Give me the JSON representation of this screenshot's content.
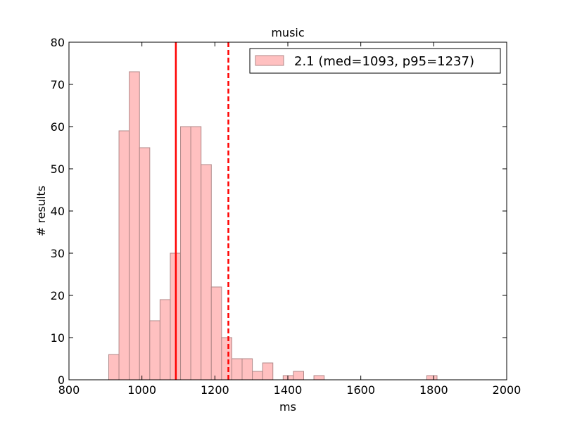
{
  "chart_data": {
    "type": "histogram",
    "title": "music",
    "xlabel": "ms",
    "ylabel": "# results",
    "bins": [
      909,
      937.125,
      965.25,
      993.375,
      1021.5,
      1049.625,
      1077.75,
      1105.875,
      1134,
      1162.125,
      1190.25,
      1218.375,
      1246.5,
      1274.625,
      1302.75,
      1330.875,
      1359,
      1387.125,
      1415.25,
      1443.375,
      1471.5,
      1499.625,
      1527.75,
      1555.875,
      1584,
      1612.125,
      1640.25,
      1668.375,
      1696.5,
      1724.625,
      1752.75,
      1780.875,
      1809
    ],
    "series": [
      {
        "name": "2.1 (med=1093, p95=1237)",
        "color": "#ffc0c0",
        "edgecolor": "#b08888",
        "values": [
          6,
          59,
          73,
          55,
          14,
          19,
          30,
          60,
          60,
          51,
          22,
          10,
          5,
          5,
          2,
          4,
          0,
          1,
          2,
          0,
          1,
          0,
          0,
          0,
          0,
          0,
          0,
          0,
          0,
          0,
          0,
          1
        ]
      }
    ],
    "vlines": [
      {
        "value": 1093,
        "style": "solid",
        "color": "#ff0000"
      },
      {
        "value": 1237,
        "style": "dashed",
        "color": "#ff0000"
      }
    ],
    "xlim": [
      800,
      2000
    ],
    "xticks": [
      800,
      1000,
      1200,
      1400,
      1600,
      1800,
      2000
    ],
    "ylim": [
      0,
      80
    ],
    "yticks": [
      0,
      10,
      20,
      30,
      40,
      50,
      60,
      70,
      80
    ],
    "legend": "upper right"
  }
}
